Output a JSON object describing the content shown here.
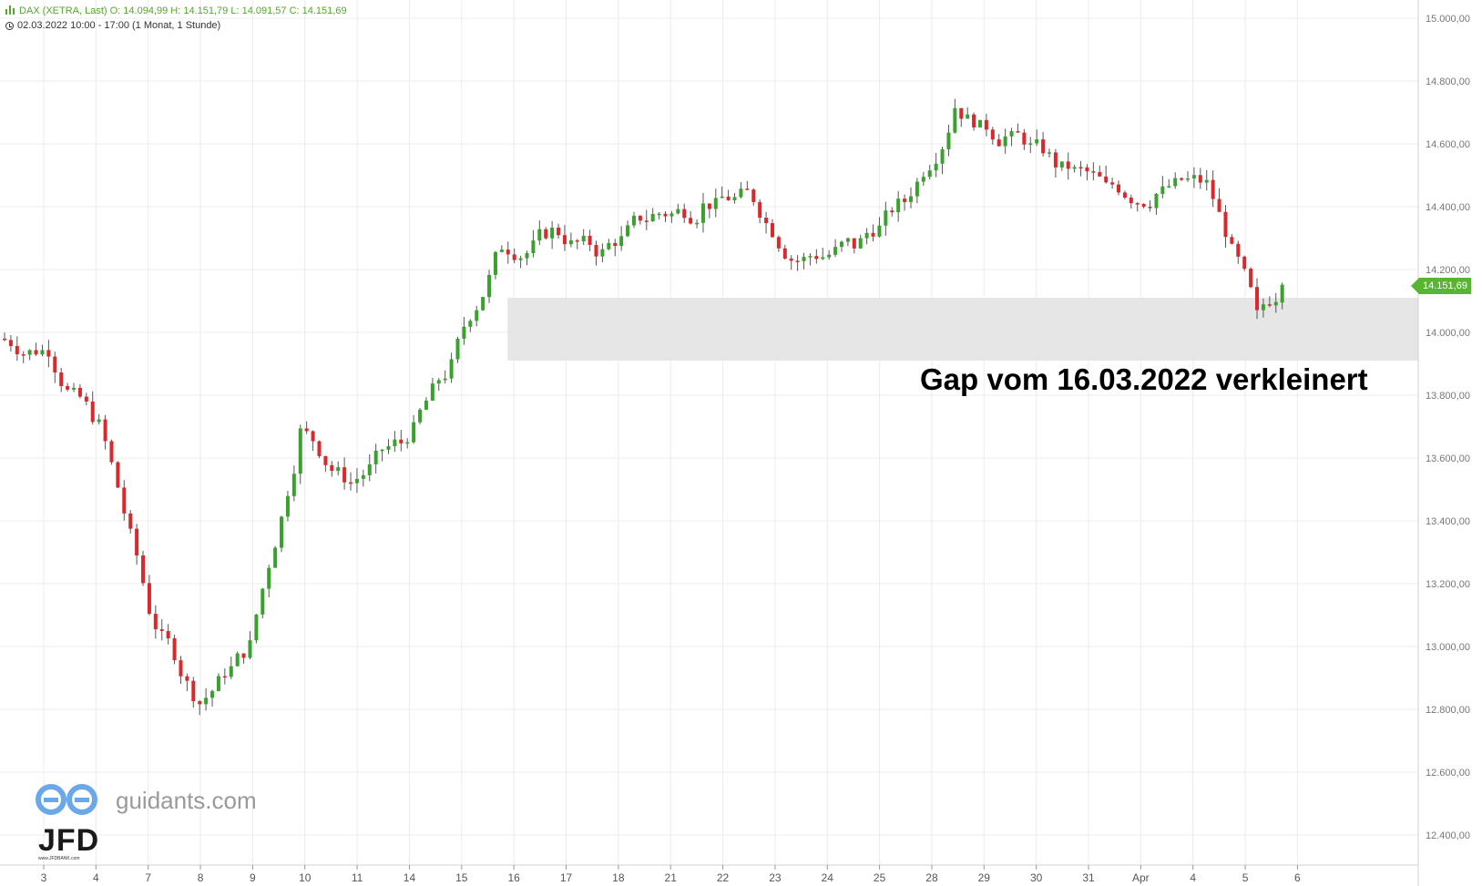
{
  "header": {
    "line1": "DAX (XETRA, Last)  O: 14.094,99  H: 14.151,79  L: 14.091,57  C: 14.151,69",
    "line2": "02.03.2022 10:00 - 17:00   (1 Monat, 1 Stunde)"
  },
  "annotation": "Gap vom 16.03.2022 verkleinert",
  "last_price_label": "14.151,69",
  "watermark": {
    "brand": "guidants.com",
    "logo_text": "JFD",
    "logo_sub": "www.JFDBANK.com"
  },
  "colors": {
    "up": "#3aa12e",
    "down": "#d9292c",
    "gap_zone": "#e6e6e6",
    "badge": "#57b531",
    "header": "#54a82a"
  },
  "chart_data": {
    "type": "candlestick",
    "instrument": "DAX (XETRA, Last)",
    "interval": "1 Stunde",
    "ylim": [
      12350,
      15030
    ],
    "y_ticks": [
      12400,
      12600,
      12800,
      13000,
      13200,
      13400,
      13600,
      13800,
      14000,
      14200,
      14400,
      14600,
      14800,
      15000
    ],
    "y_tick_labels": [
      "12.400,00",
      "12.600,00",
      "12.800,00",
      "13.000,00",
      "13.200,00",
      "13.400,00",
      "13.600,00",
      "13.800,00",
      "14.000,00",
      "14.200,00",
      "14.400,00",
      "14.600,00",
      "14.800,00",
      "15.000,00"
    ],
    "x_ticks": [
      "3",
      "4",
      "7",
      "8",
      "9",
      "10",
      "11",
      "14",
      "15",
      "16",
      "17",
      "18",
      "21",
      "22",
      "23",
      "24",
      "25",
      "28",
      "29",
      "30",
      "31",
      "Apr",
      "4",
      "5",
      "6"
    ],
    "gap_zone": {
      "from": 13910,
      "to": 14110,
      "start_label": "16"
    },
    "last": {
      "open": 14094.99,
      "high": 14151.79,
      "low": 14091.57,
      "close": 14151.69
    },
    "day_closes": [
      13950,
      13700,
      13120,
      12820,
      13000,
      13680,
      13520,
      13650,
      13890,
      14280,
      14320,
      14250,
      14370,
      14400,
      14430,
      14230,
      14280,
      14420,
      14720,
      14620,
      14540,
      14460,
      14440,
      14470,
      14050,
      14151.69
    ]
  }
}
